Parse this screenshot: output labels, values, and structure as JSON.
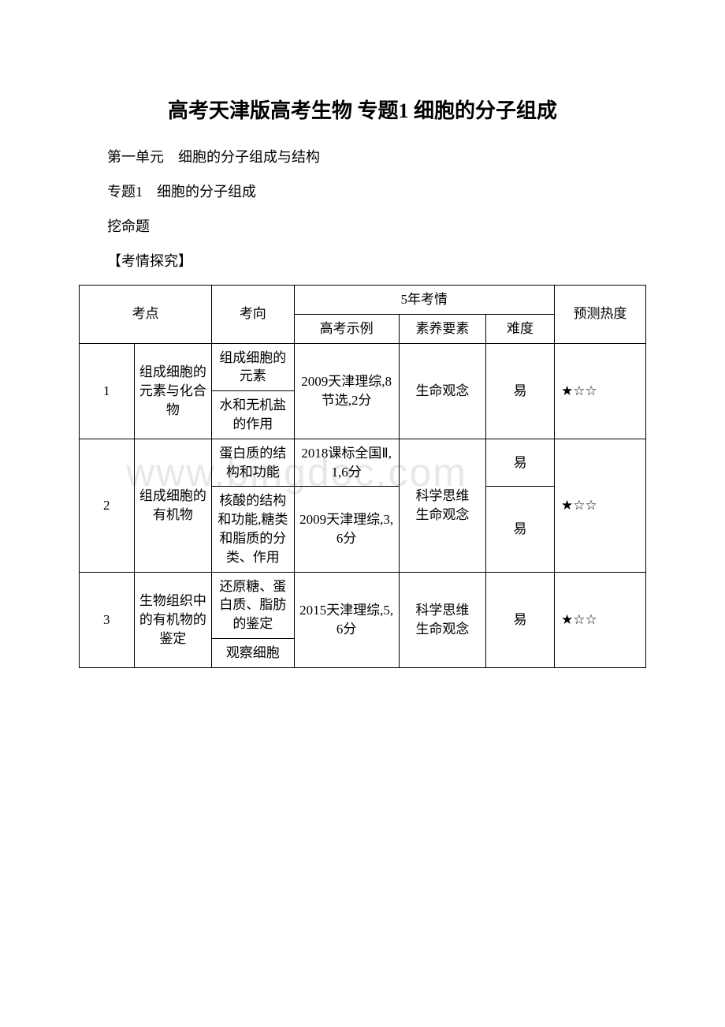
{
  "title": "高考天津版高考生物 专题1 细胞的分子组成",
  "lines": {
    "l1": "第一单元　细胞的分子组成与结构",
    "l2": "专题1　细胞的分子组成",
    "l3": "挖命题",
    "l4": "【考情探究】"
  },
  "watermark": "www.bingdoc.com",
  "table": {
    "headers": {
      "topic": "考点",
      "direction": "考向",
      "situation": "5年考情",
      "example": "高考示例",
      "literacy": "素养要素",
      "difficulty": "难度",
      "heat": "预测热度"
    },
    "rows": [
      {
        "num": "1",
        "topic": "组成细胞的元素与化合物",
        "dir1": "组成细胞的元素",
        "dir2": "水和无机盐的作用",
        "example": "2009天津理综,8节选,2分",
        "literacy": "生命观念",
        "difficulty": "易",
        "heat": "★☆☆"
      },
      {
        "num": "2",
        "topic": "组成细胞的有机物",
        "dir1": "蛋白质的结构和功能",
        "ex1": "2018课标全国Ⅱ,1,6分",
        "diff1": "易",
        "dir2": "核酸的结构和功能,糖类和脂质的分类、作用",
        "ex2": "2009天津理综,3,6分",
        "diff2": "易",
        "literacy": "科学思维\n生命观念",
        "heat": "★☆☆"
      },
      {
        "num": "3",
        "topic": "生物组织中的有机物的鉴定",
        "dir1": "还原糖、蛋白质、脂肪的鉴定",
        "dir2": "观察细胞",
        "example": "2015天津理综,5,6分",
        "literacy": "科学思维\n生命观念",
        "difficulty": "易",
        "heat": "★☆☆"
      }
    ]
  }
}
